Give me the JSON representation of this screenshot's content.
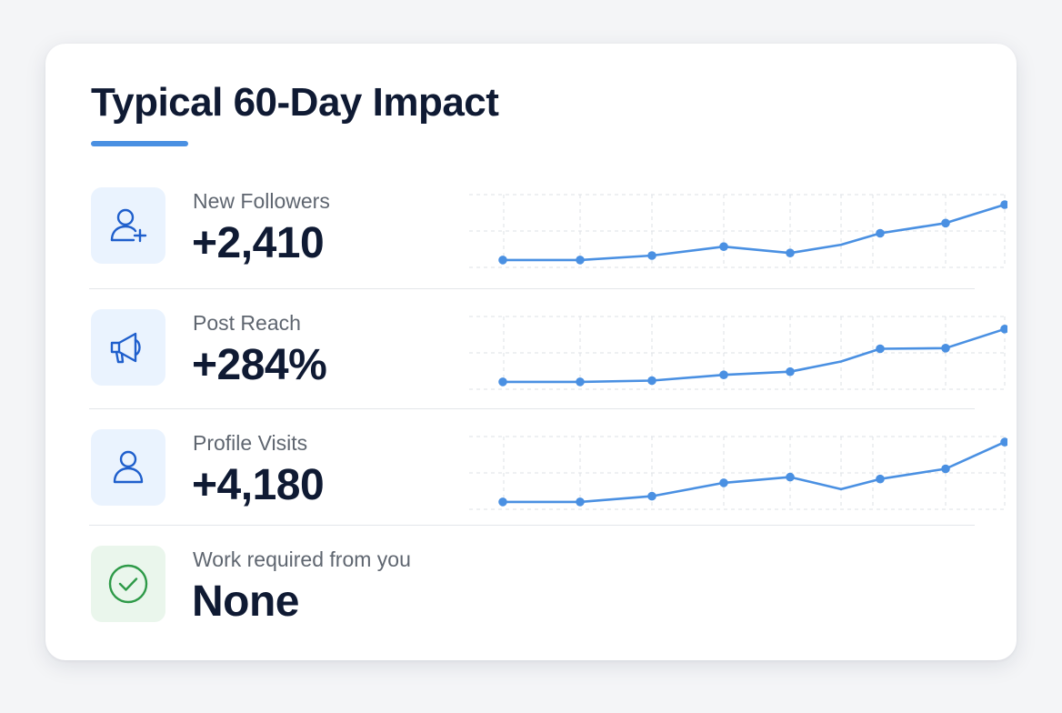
{
  "card": {
    "title": "Typical 60-Day Impact"
  },
  "metrics": [
    {
      "label": "New Followers",
      "value": "+2,410",
      "icon": "user-plus-icon",
      "trend": [
        0.03,
        0.03,
        0.1,
        0.24,
        0.14,
        0.27,
        0.45,
        0.61,
        0.9
      ]
    },
    {
      "label": "Post Reach",
      "value": "+284%",
      "icon": "megaphone-icon",
      "trend": [
        0.03,
        0.03,
        0.05,
        0.14,
        0.19,
        0.35,
        0.55,
        0.56,
        0.86
      ]
    },
    {
      "label": "Profile Visits",
      "value": "+4,180",
      "icon": "user-icon",
      "trend": [
        0.03,
        0.03,
        0.12,
        0.33,
        0.42,
        0.23,
        0.39,
        0.55,
        0.97
      ]
    },
    {
      "label": "Work required from you",
      "value": "None",
      "icon": "check-circle-icon"
    }
  ],
  "colors": {
    "accent": "#4a90e2",
    "icon_blue": "#1f5fcc",
    "icon_green": "#2e9a48",
    "title": "#0f1a33",
    "label": "#5f6670",
    "grid": "#dde1e6"
  }
}
